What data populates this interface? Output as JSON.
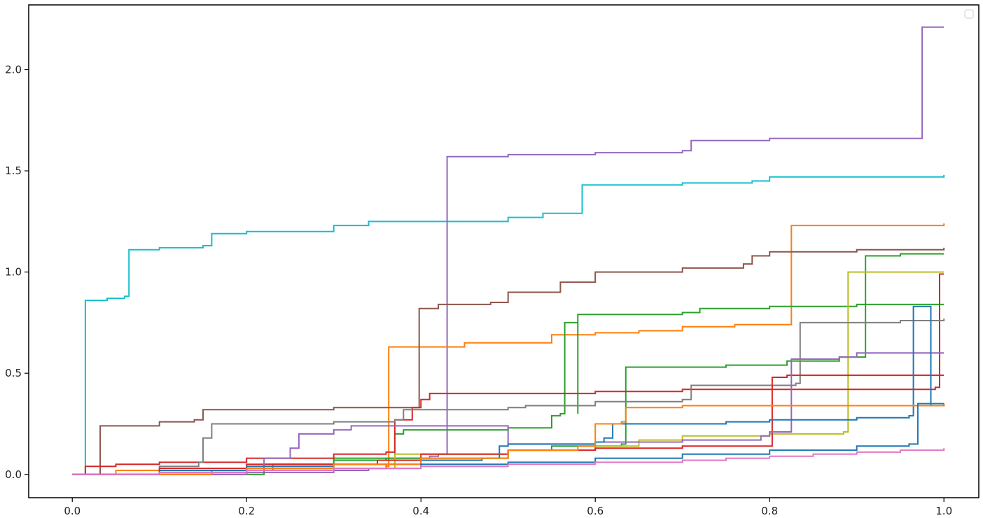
{
  "chart_data": {
    "type": "line",
    "title": "",
    "xlabel": "",
    "ylabel": "",
    "xlim": [
      -0.05,
      1.04
    ],
    "ylim": [
      -0.115,
      2.32
    ],
    "xticks": [
      0.0,
      0.2,
      0.4,
      0.6,
      0.8,
      1.0
    ],
    "xtick_labels": [
      "0.0",
      "0.2",
      "0.4",
      "0.6",
      "0.8",
      "1.0"
    ],
    "yticks": [
      0.0,
      0.5,
      1.0,
      1.5,
      2.0
    ],
    "ytick_labels": [
      "0.0",
      "0.5",
      "1.0",
      "1.5",
      "2.0"
    ],
    "grid": false,
    "legend": {
      "position": "upper right",
      "entries": []
    },
    "series": [
      {
        "color": "#17becf",
        "points": [
          [
            0,
            0
          ],
          [
            0.013,
            0
          ],
          [
            0.015,
            0.86
          ],
          [
            0.04,
            0.87
          ],
          [
            0.06,
            0.88
          ],
          [
            0.065,
            1.11
          ],
          [
            0.1,
            1.12
          ],
          [
            0.15,
            1.13
          ],
          [
            0.16,
            1.19
          ],
          [
            0.2,
            1.2
          ],
          [
            0.3,
            1.23
          ],
          [
            0.34,
            1.25
          ],
          [
            0.42,
            1.25
          ],
          [
            0.5,
            1.27
          ],
          [
            0.54,
            1.29
          ],
          [
            0.58,
            1.29
          ],
          [
            0.585,
            1.43
          ],
          [
            0.7,
            1.44
          ],
          [
            0.78,
            1.45
          ],
          [
            0.8,
            1.47
          ],
          [
            0.9,
            1.47
          ],
          [
            1.0,
            1.48
          ]
        ]
      },
      {
        "color": "#9467bd",
        "points": [
          [
            0,
            0
          ],
          [
            0.2,
            0.01
          ],
          [
            0.3,
            0.02
          ],
          [
            0.34,
            0.03
          ],
          [
            0.36,
            0.05
          ],
          [
            0.37,
            0.08
          ],
          [
            0.41,
            0.09
          ],
          [
            0.42,
            0.1
          ],
          [
            0.427,
            0.1
          ],
          [
            0.43,
            1.57
          ],
          [
            0.5,
            1.58
          ],
          [
            0.6,
            1.59
          ],
          [
            0.7,
            1.6
          ],
          [
            0.71,
            1.65
          ],
          [
            0.8,
            1.66
          ],
          [
            0.97,
            1.66
          ],
          [
            0.975,
            2.21
          ],
          [
            1.0,
            2.21
          ]
        ]
      },
      {
        "color": "#ff7f0e",
        "points": [
          [
            0,
            0
          ],
          [
            0.05,
            0.02
          ],
          [
            0.16,
            0.02
          ],
          [
            0.2,
            0.03
          ],
          [
            0.36,
            0.04
          ],
          [
            0.363,
            0.63
          ],
          [
            0.45,
            0.65
          ],
          [
            0.55,
            0.69
          ],
          [
            0.6,
            0.7
          ],
          [
            0.65,
            0.71
          ],
          [
            0.7,
            0.73
          ],
          [
            0.76,
            0.74
          ],
          [
            0.82,
            0.74
          ],
          [
            0.825,
            1.23
          ],
          [
            1.0,
            1.24
          ]
        ]
      },
      {
        "color": "#8c564b",
        "points": [
          [
            0,
            0
          ],
          [
            0.03,
            0
          ],
          [
            0.032,
            0.24
          ],
          [
            0.1,
            0.26
          ],
          [
            0.14,
            0.27
          ],
          [
            0.15,
            0.32
          ],
          [
            0.3,
            0.33
          ],
          [
            0.39,
            0.33
          ],
          [
            0.398,
            0.82
          ],
          [
            0.42,
            0.84
          ],
          [
            0.48,
            0.85
          ],
          [
            0.5,
            0.9
          ],
          [
            0.56,
            0.95
          ],
          [
            0.6,
            1.0
          ],
          [
            0.7,
            1.02
          ],
          [
            0.77,
            1.04
          ],
          [
            0.78,
            1.08
          ],
          [
            0.8,
            1.1
          ],
          [
            0.9,
            1.11
          ],
          [
            1.0,
            1.12
          ]
        ]
      },
      {
        "color": "#2ca02c",
        "points": [
          [
            0,
            0
          ],
          [
            0.16,
            0.02
          ],
          [
            0.23,
            0.05
          ],
          [
            0.3,
            0.07
          ],
          [
            0.36,
            0.08
          ],
          [
            0.37,
            0.2
          ],
          [
            0.38,
            0.22
          ],
          [
            0.5,
            0.23
          ],
          [
            0.54,
            0.23
          ],
          [
            0.55,
            0.29
          ],
          [
            0.58,
            0.3
          ],
          [
            0.56,
            0.3
          ],
          [
            0.565,
            0.75
          ],
          [
            0.58,
            0.79
          ],
          [
            0.7,
            0.8
          ],
          [
            0.72,
            0.82
          ],
          [
            0.8,
            0.83
          ],
          [
            0.9,
            0.84
          ],
          [
            1.0,
            0.84
          ]
        ]
      },
      {
        "color": "#2ca02c",
        "points": [
          [
            0,
            0
          ],
          [
            0.22,
            0.05
          ],
          [
            0.3,
            0.08
          ],
          [
            0.5,
            0.12
          ],
          [
            0.55,
            0.14
          ],
          [
            0.63,
            0.15
          ],
          [
            0.635,
            0.53
          ],
          [
            0.75,
            0.54
          ],
          [
            0.82,
            0.56
          ],
          [
            0.88,
            0.58
          ],
          [
            0.905,
            0.58
          ],
          [
            0.91,
            1.08
          ],
          [
            0.95,
            1.09
          ],
          [
            1.0,
            1.09
          ]
        ]
      },
      {
        "color": "#bcbd22",
        "points": [
          [
            0,
            0
          ],
          [
            0.2,
            0.03
          ],
          [
            0.37,
            0.1
          ],
          [
            0.5,
            0.12
          ],
          [
            0.6,
            0.14
          ],
          [
            0.65,
            0.17
          ],
          [
            0.7,
            0.19
          ],
          [
            0.8,
            0.2
          ],
          [
            0.885,
            0.21
          ],
          [
            0.89,
            1.0
          ],
          [
            1.0,
            1.0
          ]
        ]
      },
      {
        "color": "#d62728",
        "points": [
          [
            0,
            0
          ],
          [
            0.015,
            0.04
          ],
          [
            0.05,
            0.05
          ],
          [
            0.1,
            0.06
          ],
          [
            0.2,
            0.08
          ],
          [
            0.3,
            0.1
          ],
          [
            0.36,
            0.11
          ],
          [
            0.37,
            0.27
          ],
          [
            0.39,
            0.33
          ],
          [
            0.4,
            0.37
          ],
          [
            0.41,
            0.4
          ],
          [
            0.5,
            0.4
          ],
          [
            0.6,
            0.41
          ],
          [
            0.7,
            0.42
          ],
          [
            0.8,
            0.42
          ],
          [
            0.9,
            0.42
          ],
          [
            0.99,
            0.43
          ],
          [
            0.995,
            0.99
          ],
          [
            1.0,
            0.99
          ]
        ]
      },
      {
        "color": "#7f7f7f",
        "points": [
          [
            0,
            0
          ],
          [
            0.1,
            0.04
          ],
          [
            0.145,
            0.06
          ],
          [
            0.15,
            0.18
          ],
          [
            0.16,
            0.25
          ],
          [
            0.3,
            0.26
          ],
          [
            0.37,
            0.27
          ],
          [
            0.38,
            0.32
          ],
          [
            0.5,
            0.33
          ],
          [
            0.52,
            0.34
          ],
          [
            0.6,
            0.36
          ],
          [
            0.7,
            0.37
          ],
          [
            0.71,
            0.44
          ],
          [
            0.8,
            0.44
          ],
          [
            0.83,
            0.45
          ],
          [
            0.835,
            0.75
          ],
          [
            0.9,
            0.75
          ],
          [
            0.95,
            0.76
          ],
          [
            1.0,
            0.77
          ]
        ]
      },
      {
        "color": "#d62728",
        "points": [
          [
            0,
            0
          ],
          [
            0.1,
            0.03
          ],
          [
            0.2,
            0.05
          ],
          [
            0.35,
            0.07
          ],
          [
            0.4,
            0.1
          ],
          [
            0.5,
            0.12
          ],
          [
            0.6,
            0.13
          ],
          [
            0.7,
            0.14
          ],
          [
            0.8,
            0.14
          ],
          [
            0.803,
            0.48
          ],
          [
            0.82,
            0.49
          ],
          [
            1.0,
            0.49
          ]
        ]
      },
      {
        "color": "#9467bd",
        "points": [
          [
            0,
            0
          ],
          [
            0.2,
            0.04
          ],
          [
            0.22,
            0.08
          ],
          [
            0.25,
            0.13
          ],
          [
            0.26,
            0.2
          ],
          [
            0.3,
            0.22
          ],
          [
            0.32,
            0.24
          ],
          [
            0.4,
            0.24
          ],
          [
            0.5,
            0.15
          ],
          [
            0.6,
            0.16
          ],
          [
            0.7,
            0.17
          ],
          [
            0.79,
            0.19
          ],
          [
            0.8,
            0.21
          ],
          [
            0.82,
            0.21
          ],
          [
            0.825,
            0.57
          ],
          [
            0.88,
            0.58
          ],
          [
            0.9,
            0.6
          ],
          [
            1.0,
            0.6
          ]
        ]
      },
      {
        "color": "#1f77b4",
        "points": [
          [
            0,
            0
          ],
          [
            0.1,
            0.02
          ],
          [
            0.2,
            0.04
          ],
          [
            0.3,
            0.05
          ],
          [
            0.4,
            0.07
          ],
          [
            0.47,
            0.08
          ],
          [
            0.49,
            0.14
          ],
          [
            0.5,
            0.15
          ],
          [
            0.6,
            0.16
          ],
          [
            0.61,
            0.18
          ],
          [
            0.62,
            0.25
          ],
          [
            0.7,
            0.25
          ],
          [
            0.75,
            0.26
          ],
          [
            0.8,
            0.27
          ],
          [
            0.9,
            0.28
          ],
          [
            0.96,
            0.29
          ],
          [
            0.965,
            0.83
          ],
          [
            0.98,
            0.83
          ],
          [
            0.985,
            0.34
          ],
          [
            1.0,
            0.35
          ]
        ]
      },
      {
        "color": "#ff7f0e",
        "points": [
          [
            0,
            0
          ],
          [
            0.16,
            0.01
          ],
          [
            0.2,
            0.03
          ],
          [
            0.3,
            0.05
          ],
          [
            0.4,
            0.08
          ],
          [
            0.5,
            0.12
          ],
          [
            0.58,
            0.14
          ],
          [
            0.6,
            0.15
          ],
          [
            0.6,
            0.25
          ],
          [
            0.63,
            0.26
          ],
          [
            0.635,
            0.33
          ],
          [
            0.7,
            0.34
          ],
          [
            0.8,
            0.34
          ],
          [
            0.9,
            0.34
          ],
          [
            1.0,
            0.35
          ]
        ]
      },
      {
        "color": "#1f77b4",
        "points": [
          [
            0,
            0
          ],
          [
            0.1,
            0.01
          ],
          [
            0.2,
            0.02
          ],
          [
            0.3,
            0.03
          ],
          [
            0.4,
            0.05
          ],
          [
            0.5,
            0.06
          ],
          [
            0.6,
            0.08
          ],
          [
            0.7,
            0.1
          ],
          [
            0.8,
            0.12
          ],
          [
            0.9,
            0.14
          ],
          [
            0.96,
            0.15
          ],
          [
            0.97,
            0.35
          ],
          [
            1.0,
            0.35
          ]
        ]
      },
      {
        "color": "#e377c2",
        "points": [
          [
            0,
            0
          ],
          [
            0.1,
            0.01
          ],
          [
            0.2,
            0.02
          ],
          [
            0.3,
            0.03
          ],
          [
            0.4,
            0.04
          ],
          [
            0.5,
            0.05
          ],
          [
            0.6,
            0.06
          ],
          [
            0.7,
            0.07
          ],
          [
            0.75,
            0.08
          ],
          [
            0.8,
            0.09
          ],
          [
            0.85,
            0.1
          ],
          [
            0.9,
            0.11
          ],
          [
            0.95,
            0.12
          ],
          [
            1.0,
            0.13
          ]
        ]
      }
    ]
  }
}
